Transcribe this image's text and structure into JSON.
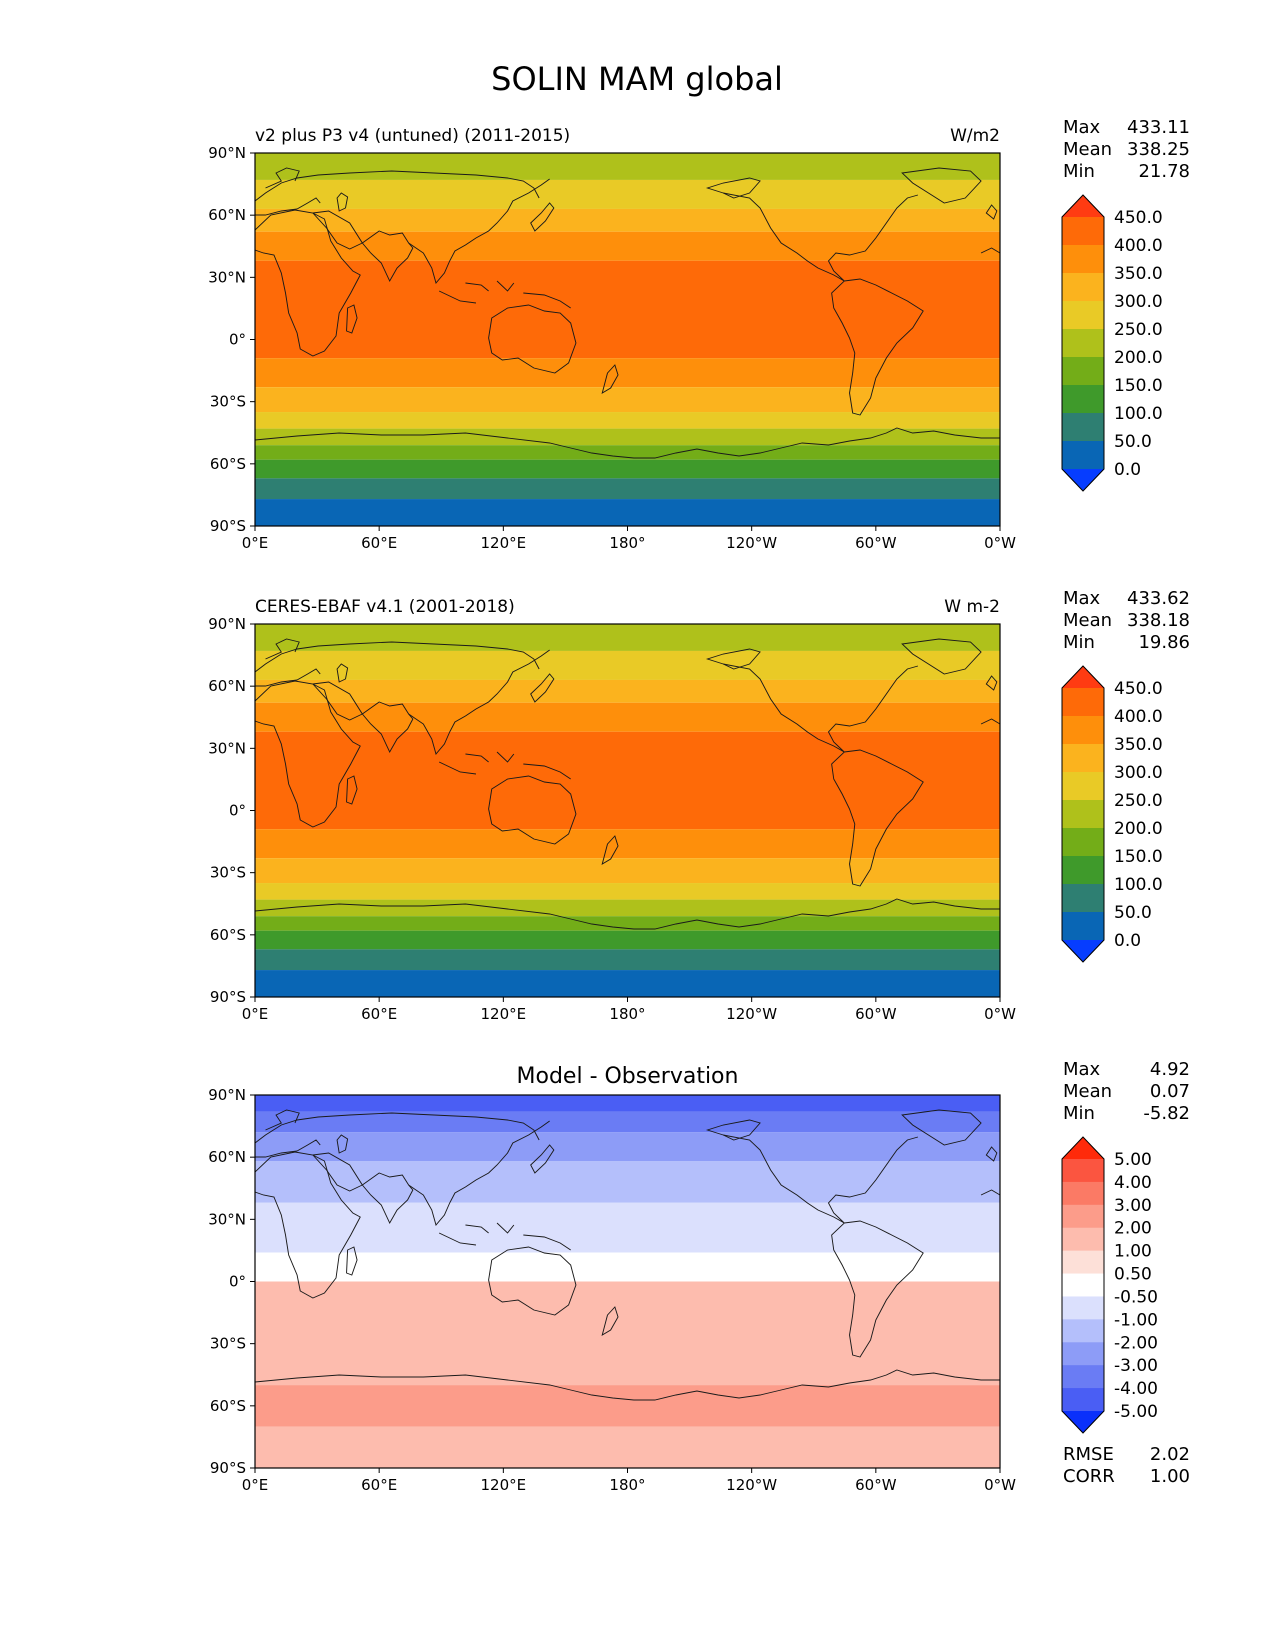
{
  "title": "SOLIN MAM global",
  "axes": {
    "x_ticks": [
      "0°E",
      "60°E",
      "120°E",
      "180°",
      "120°W",
      "60°W",
      "0°W"
    ],
    "y_ticks": [
      "90°N",
      "60°N",
      "30°N",
      "0°",
      "30°S",
      "60°S",
      "90°S"
    ]
  },
  "panels": [
    {
      "id": "model",
      "left_title": "v2 plus P3 v4 (untuned) (2011-2015)",
      "center_title": "",
      "right_title": "W/m2",
      "stats": [
        {
          "label": "Max",
          "value": "433.11"
        },
        {
          "label": "Mean",
          "value": "338.25"
        },
        {
          "label": "Min",
          "value": "21.78"
        }
      ],
      "colorbar_labels": [
        "450.0",
        "400.0",
        "350.0",
        "300.0",
        "250.0",
        "200.0",
        "150.0",
        "100.0",
        "50.0",
        "0.0"
      ],
      "colorbar_colors": [
        "#ff3b12",
        "#fe6a08",
        "#fe8f0b",
        "#fbb31e",
        "#e9ca26",
        "#afc11b",
        "#73ad18",
        "#3f9a2b",
        "#2e7f72",
        "#0966b5",
        "#063dff"
      ],
      "footer_stats": []
    },
    {
      "id": "obs",
      "left_title": "CERES-EBAF v4.1 (2001-2018)",
      "center_title": "",
      "right_title": "W m-2",
      "stats": [
        {
          "label": "Max",
          "value": "433.62"
        },
        {
          "label": "Mean",
          "value": "338.18"
        },
        {
          "label": "Min",
          "value": "19.86"
        }
      ],
      "colorbar_labels": [
        "450.0",
        "400.0",
        "350.0",
        "300.0",
        "250.0",
        "200.0",
        "150.0",
        "100.0",
        "50.0",
        "0.0"
      ],
      "colorbar_colors": [
        "#ff3b12",
        "#fe6a08",
        "#fe8f0b",
        "#fbb31e",
        "#e9ca26",
        "#afc11b",
        "#73ad18",
        "#3f9a2b",
        "#2e7f72",
        "#0966b5",
        "#063dff"
      ],
      "footer_stats": []
    },
    {
      "id": "diff",
      "left_title": "",
      "center_title": "Model - Observation",
      "right_title": "",
      "stats": [
        {
          "label": "Max",
          "value": "4.92"
        },
        {
          "label": "Mean",
          "value": "0.07"
        },
        {
          "label": "Min",
          "value": "-5.82"
        }
      ],
      "colorbar_labels": [
        "5.00",
        "4.00",
        "3.00",
        "2.00",
        "1.00",
        "0.50",
        "-0.50",
        "-1.00",
        "-2.00",
        "-3.00",
        "-4.00",
        "-5.00"
      ],
      "colorbar_colors": [
        "#ff2a0a",
        "#fb5540",
        "#fb7a65",
        "#fc9c8a",
        "#fdbcae",
        "#fde0d8",
        "#ffffff",
        "#dbe0fd",
        "#b4bffb",
        "#8d9cf7",
        "#6a7cf4",
        "#4a5ef4",
        "#0a30fb"
      ],
      "footer_stats": [
        {
          "label": "RMSE",
          "value": "2.02"
        },
        {
          "label": "CORR",
          "value": "1.00"
        }
      ]
    }
  ],
  "chart_data": [
    {
      "type": "heatmap",
      "title": "v2 plus P3 v4 (untuned) (2011-2015)",
      "units": "W/m2",
      "xlim": [
        0,
        360
      ],
      "ylim": [
        -90,
        90
      ],
      "levels": [
        0,
        50,
        100,
        150,
        200,
        250,
        300,
        350,
        400,
        450
      ],
      "bands": [
        {
          "lat_from": 90,
          "lat_to": 77,
          "level": 200
        },
        {
          "lat_from": 77,
          "lat_to": 63,
          "level": 250
        },
        {
          "lat_from": 63,
          "lat_to": 52,
          "level": 300
        },
        {
          "lat_from": 52,
          "lat_to": 38,
          "level": 350
        },
        {
          "lat_from": 38,
          "lat_to": -9,
          "level": 400
        },
        {
          "lat_from": -9,
          "lat_to": -23,
          "level": 350
        },
        {
          "lat_from": -23,
          "lat_to": -35,
          "level": 300
        },
        {
          "lat_from": -35,
          "lat_to": -43,
          "level": 250
        },
        {
          "lat_from": -43,
          "lat_to": -51,
          "level": 200
        },
        {
          "lat_from": -51,
          "lat_to": -58,
          "level": 150
        },
        {
          "lat_from": -58,
          "lat_to": -67,
          "level": 100
        },
        {
          "lat_from": -67,
          "lat_to": -77,
          "level": 50
        },
        {
          "lat_from": -77,
          "lat_to": -90,
          "level": 0
        }
      ]
    },
    {
      "type": "heatmap",
      "title": "CERES-EBAF v4.1 (2001-2018)",
      "units": "W m-2",
      "xlim": [
        0,
        360
      ],
      "ylim": [
        -90,
        90
      ],
      "levels": [
        0,
        50,
        100,
        150,
        200,
        250,
        300,
        350,
        400,
        450
      ],
      "bands": [
        {
          "lat_from": 90,
          "lat_to": 77,
          "level": 200
        },
        {
          "lat_from": 77,
          "lat_to": 63,
          "level": 250
        },
        {
          "lat_from": 63,
          "lat_to": 52,
          "level": 300
        },
        {
          "lat_from": 52,
          "lat_to": 38,
          "level": 350
        },
        {
          "lat_from": 38,
          "lat_to": -9,
          "level": 400
        },
        {
          "lat_from": -9,
          "lat_to": -23,
          "level": 350
        },
        {
          "lat_from": -23,
          "lat_to": -35,
          "level": 300
        },
        {
          "lat_from": -35,
          "lat_to": -43,
          "level": 250
        },
        {
          "lat_from": -43,
          "lat_to": -51,
          "level": 200
        },
        {
          "lat_from": -51,
          "lat_to": -58,
          "level": 150
        },
        {
          "lat_from": -58,
          "lat_to": -67,
          "level": 100
        },
        {
          "lat_from": -67,
          "lat_to": -77,
          "level": 50
        },
        {
          "lat_from": -77,
          "lat_to": -90,
          "level": 0
        }
      ]
    },
    {
      "type": "heatmap",
      "title": "Model - Observation",
      "xlim": [
        0,
        360
      ],
      "ylim": [
        -90,
        90
      ],
      "levels": [
        -5,
        -4,
        -3,
        -2,
        -1,
        -0.5,
        0.5,
        1,
        2,
        3,
        4,
        5
      ],
      "bands": [
        {
          "lat_from": 90,
          "lat_to": 82,
          "level": -4.5
        },
        {
          "lat_from": 82,
          "lat_to": 72,
          "level": -3.5
        },
        {
          "lat_from": 72,
          "lat_to": 58,
          "level": -2.5
        },
        {
          "lat_from": 58,
          "lat_to": 38,
          "level": -1.5
        },
        {
          "lat_from": 38,
          "lat_to": 14,
          "level": -0.75
        },
        {
          "lat_from": 14,
          "lat_to": 0,
          "level": 0
        },
        {
          "lat_from": 0,
          "lat_to": -22,
          "level": 0.75
        },
        {
          "lat_from": 0,
          "lat_to": -50,
          "level": 1.5
        },
        {
          "lat_from": -50,
          "lat_to": -70,
          "level": 2.5
        },
        {
          "lat_from": -70,
          "lat_to": -90,
          "level": 1.5
        }
      ]
    }
  ]
}
